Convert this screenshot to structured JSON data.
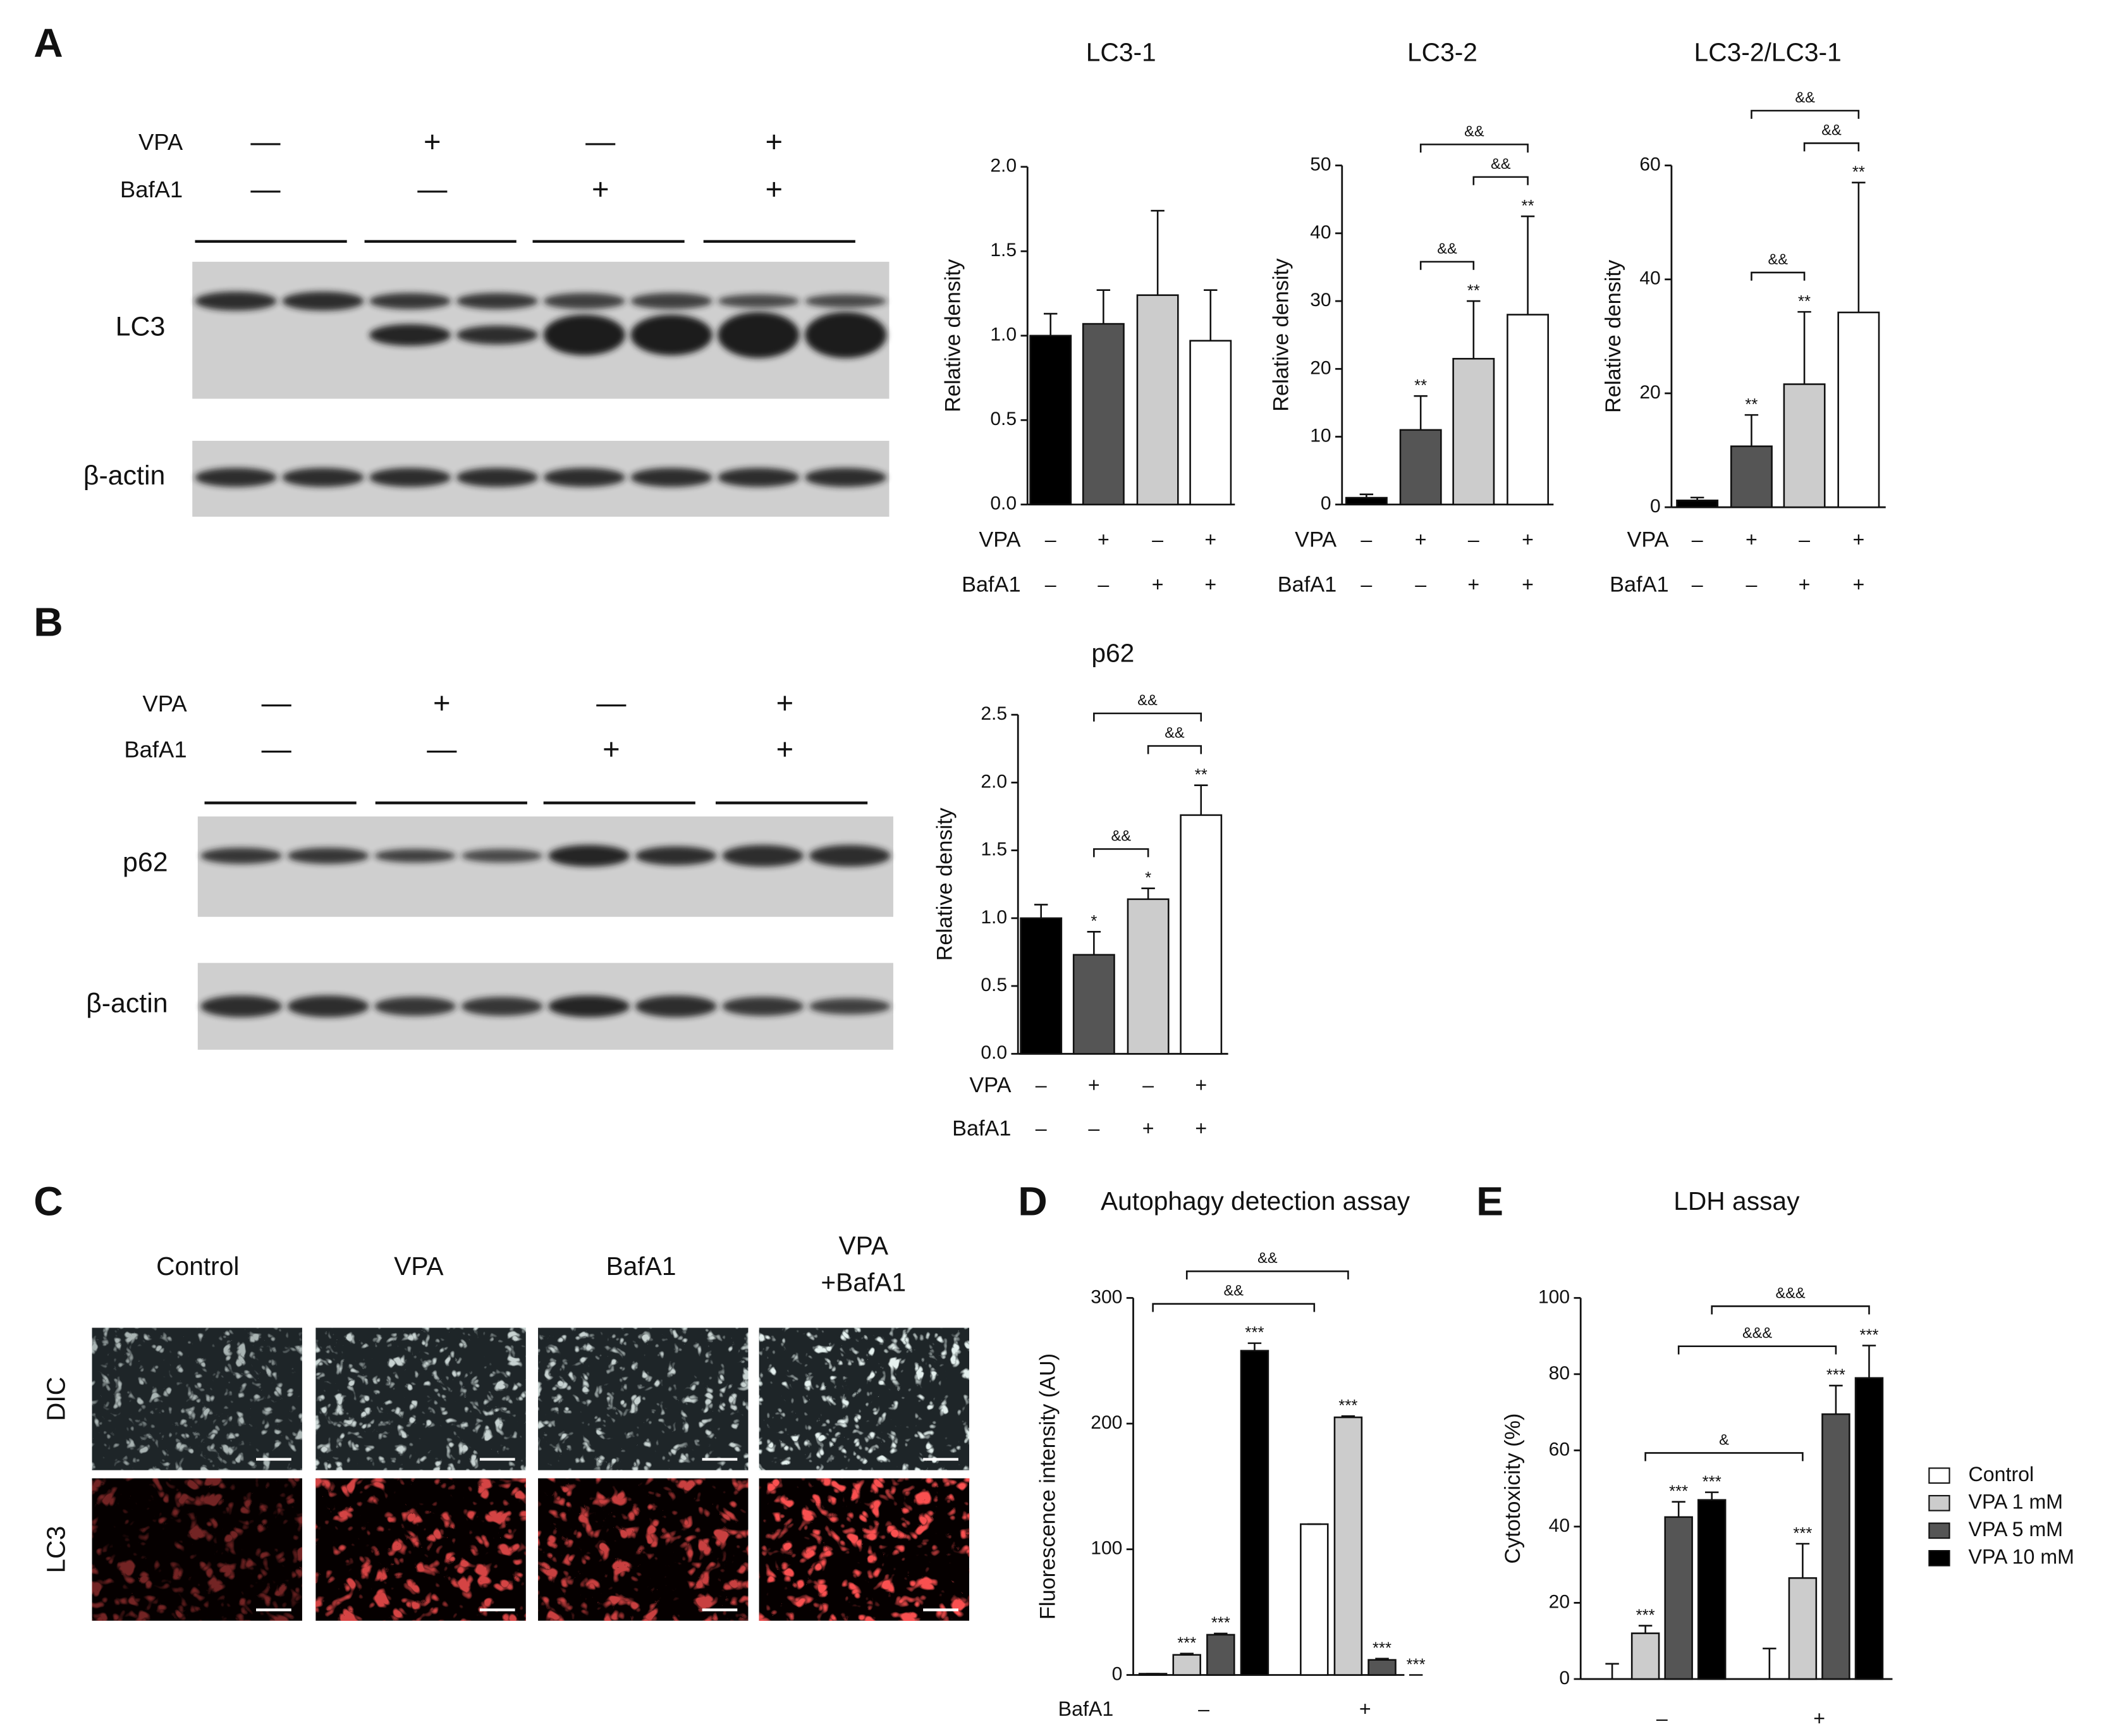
{
  "panel_labels": [
    "A",
    "B",
    "C",
    "D",
    "E"
  ],
  "blots": [
    {
      "treatments": [
        {
          "name": "VPA",
          "signs": [
            "—",
            "+",
            "—",
            "+"
          ]
        },
        {
          "name": "BafA1",
          "signs": [
            "—",
            "—",
            "+",
            "+"
          ]
        }
      ],
      "bands": [
        "LC3",
        "β-actin"
      ]
    },
    {
      "treatments": [
        {
          "name": "VPA",
          "signs": [
            "—",
            "+",
            "—",
            "+"
          ]
        },
        {
          "name": "BafA1",
          "signs": [
            "—",
            "—",
            "+",
            "+"
          ]
        }
      ],
      "bands": [
        "p62",
        "β-actin"
      ]
    }
  ],
  "microscopy": {
    "columns": [
      [
        "Control"
      ],
      [
        "VPA"
      ],
      [
        "BafA1"
      ],
      [
        "VPA",
        "+BafA1"
      ]
    ],
    "rows": [
      "DIC",
      "LC3"
    ]
  },
  "chart_data": [
    {
      "type": "bar",
      "title": "LC3-1",
      "y_label": "Relative density",
      "ylim": [
        0,
        2
      ],
      "yticks": [
        {
          "value": 0,
          "label": "0.0"
        },
        {
          "value": 0.5,
          "label": "0.5"
        },
        {
          "value": 1,
          "label": "1.0"
        },
        {
          "value": 1.5,
          "label": "1.5"
        },
        {
          "value": 2,
          "label": "2.0"
        }
      ],
      "series": [
        {
          "colors": [
            "#000000",
            "#555555",
            "#cccccc",
            "#ffffff"
          ],
          "values": [
            1.0,
            1.07,
            1.24,
            0.97
          ],
          "errors": [
            0.13,
            0.2,
            0.5,
            0.3
          ]
        }
      ],
      "conditions": [
        {
          "name": "VPA",
          "signs": [
            "–",
            "+",
            "–",
            "+"
          ]
        },
        {
          "name": "BafA1",
          "signs": [
            "–",
            "–",
            "+",
            "+"
          ]
        }
      ]
    },
    {
      "type": "bar",
      "title": "LC3-2",
      "y_label": "Relative density",
      "ylim": [
        0,
        50
      ],
      "yticks": [
        0,
        10,
        20,
        30,
        40,
        50
      ],
      "series": [
        {
          "colors": [
            "#000000",
            "#555555",
            "#cccccc",
            "#ffffff"
          ],
          "values": [
            1,
            11,
            21.5,
            28
          ],
          "errors": [
            0.5,
            5,
            8.5,
            14.5
          ],
          "stars": [
            null,
            "**",
            "**",
            "**"
          ]
        }
      ],
      "conditions": [
        {
          "name": "VPA",
          "signs": [
            "–",
            "+",
            "–",
            "+"
          ]
        },
        {
          "name": "BafA1",
          "signs": [
            "–",
            "–",
            "+",
            "+"
          ]
        }
      ],
      "brackets": [
        {
          "from": [
            1,
            0
          ],
          "to": [
            2,
            0
          ],
          "label": "&&"
        },
        {
          "from": [
            2,
            0
          ],
          "to": [
            3,
            0
          ],
          "label": "&&"
        },
        {
          "from": [
            1,
            0
          ],
          "to": [
            3,
            0
          ],
          "label": "&&"
        }
      ]
    },
    {
      "type": "bar",
      "title": "LC3-2/LC3-1",
      "y_label": "Relative density",
      "ylim": [
        0,
        60
      ],
      "yticks": [
        0,
        20,
        40,
        60
      ],
      "series": [
        {
          "colors": [
            "#000000",
            "#555555",
            "#cccccc",
            "#ffffff"
          ],
          "values": [
            1.2,
            10.7,
            21.6,
            34.2
          ],
          "errors": [
            0.5,
            5.5,
            12.7,
            22.8
          ],
          "stars": [
            null,
            "**",
            "**",
            "**"
          ]
        }
      ],
      "conditions": [
        {
          "name": "VPA",
          "signs": [
            "–",
            "+",
            "–",
            "+"
          ]
        },
        {
          "name": "BafA1",
          "signs": [
            "–",
            "–",
            "+",
            "+"
          ]
        }
      ],
      "brackets": [
        {
          "from": [
            1,
            0
          ],
          "to": [
            2,
            0
          ],
          "label": "&&"
        },
        {
          "from": [
            2,
            0
          ],
          "to": [
            3,
            0
          ],
          "label": "&&"
        },
        {
          "from": [
            1,
            0
          ],
          "to": [
            3,
            0
          ],
          "label": "&&"
        }
      ]
    },
    {
      "type": "bar",
      "title": "p62",
      "y_label": "Relative density",
      "ylim": [
        0,
        2.5
      ],
      "yticks": [
        {
          "value": 0,
          "label": "0.0"
        },
        {
          "value": 0.5,
          "label": "0.5"
        },
        {
          "value": 1,
          "label": "1.0"
        },
        {
          "value": 1.5,
          "label": "1.5"
        },
        {
          "value": 2,
          "label": "2.0"
        },
        {
          "value": 2.5,
          "label": "2.5"
        }
      ],
      "series": [
        {
          "colors": [
            "#000000",
            "#555555",
            "#cccccc",
            "#ffffff"
          ],
          "values": [
            1.0,
            0.73,
            1.14,
            1.76
          ],
          "errors": [
            0.1,
            0.17,
            0.08,
            0.22
          ],
          "stars": [
            null,
            "*",
            "*",
            "**"
          ]
        }
      ],
      "conditions": [
        {
          "name": "VPA",
          "signs": [
            "–",
            "+",
            "–",
            "+"
          ]
        },
        {
          "name": "BafA1",
          "signs": [
            "–",
            "–",
            "+",
            "+"
          ]
        }
      ],
      "brackets": [
        {
          "from": [
            1,
            0
          ],
          "to": [
            2,
            0
          ],
          "label": "&&"
        },
        {
          "from": [
            2,
            0
          ],
          "to": [
            3,
            0
          ],
          "label": "&&"
        },
        {
          "from": [
            1,
            0
          ],
          "to": [
            3,
            0
          ],
          "label": "&&"
        }
      ]
    },
    {
      "type": "bar",
      "title": "Autophagy detection assay",
      "y_label": "Fluorescence intensity (AU)",
      "ylim": [
        0,
        300
      ],
      "yticks": [
        0,
        100,
        200,
        300
      ],
      "x_label": "BafA1",
      "categories": [
        "–",
        "+"
      ],
      "series": [
        {
          "color": "#ffffff",
          "values": [
            1,
            120
          ],
          "errors": [
            0,
            0
          ]
        },
        {
          "color": "#cccccc",
          "values": [
            16,
            205
          ],
          "errors": [
            1,
            1
          ],
          "stars": [
            "***",
            "***"
          ]
        },
        {
          "color": "#555555",
          "values": [
            32,
            12
          ],
          "errors": [
            1,
            1
          ],
          "stars": [
            "***",
            "***"
          ]
        },
        {
          "color": "#000000",
          "values": [
            258,
            0
          ],
          "errors": [
            6,
            0
          ],
          "stars": [
            "***",
            "***"
          ]
        }
      ],
      "brackets": [
        {
          "from": [
            0,
            0
          ],
          "to": [
            1,
            0
          ],
          "label": "&&"
        },
        {
          "from": [
            0,
            1
          ],
          "to": [
            1,
            1
          ],
          "label": "&&"
        }
      ]
    },
    {
      "type": "bar",
      "title": "LDH assay",
      "y_label": "Cytotoxicity (%)",
      "ylim": [
        0,
        100
      ],
      "yticks": [
        0,
        20,
        40,
        60,
        80,
        100
      ],
      "categories": [
        "–",
        "+"
      ],
      "legend": "right",
      "series": [
        {
          "name": "Control",
          "color": "#ffffff",
          "values": [
            0,
            0
          ],
          "errors": [
            4,
            8
          ]
        },
        {
          "name": "VPA 1 mM",
          "color": "#cccccc",
          "values": [
            12,
            26.5
          ],
          "errors": [
            2,
            9
          ],
          "stars": [
            "***",
            "***"
          ]
        },
        {
          "name": "VPA 5 mM",
          "color": "#555555",
          "values": [
            42.5,
            69.5
          ],
          "errors": [
            4,
            7.5
          ],
          "stars": [
            "***",
            "***"
          ]
        },
        {
          "name": "VPA 10 mM",
          "color": "#000000",
          "values": [
            47,
            79
          ],
          "errors": [
            2,
            8.5
          ],
          "stars": [
            "***",
            "***"
          ]
        }
      ],
      "brackets": [
        {
          "from": [
            0,
            1
          ],
          "to": [
            1,
            1
          ],
          "label": "&"
        },
        {
          "from": [
            0,
            2
          ],
          "to": [
            1,
            2
          ],
          "label": "&&&"
        },
        {
          "from": [
            0,
            3
          ],
          "to": [
            1,
            3
          ],
          "label": "&&&"
        }
      ]
    }
  ]
}
